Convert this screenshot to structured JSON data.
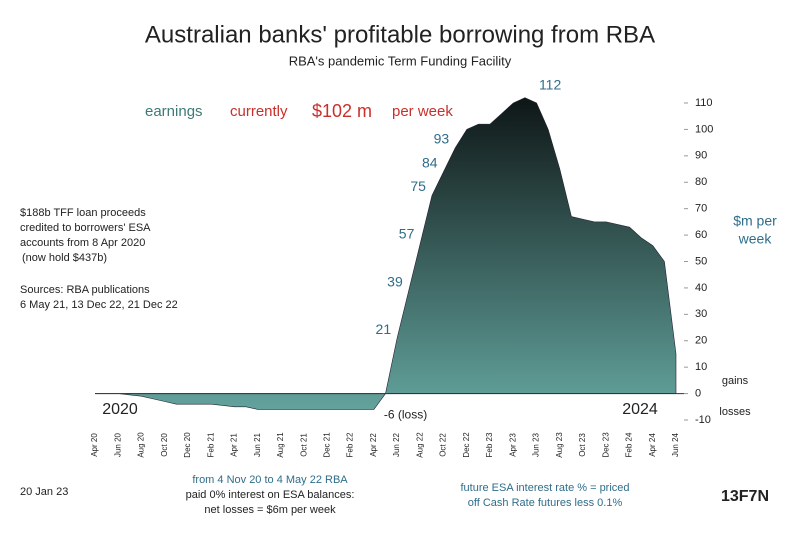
{
  "chart_data": {
    "type": "area",
    "title": "Australian banks' profitable borrowing from RBA",
    "subtitle": "RBA's pandemic Term Funding Facility",
    "headline": [
      "earnings",
      "currently",
      "$102 m",
      "per week"
    ],
    "note_left": [
      "$188b TFF loan proceeds",
      "credited to borrowers' ESA",
      "accounts from 8 Apr 2020",
      "(now hold $437b)"
    ],
    "sources": [
      "Sources:  RBA publications",
      "6 May 21, 13 Dec 22, 21 Dec 22"
    ],
    "year_labels": [
      "2020",
      "2024"
    ],
    "y_axis_label": [
      "$m per",
      "week"
    ],
    "gain_label": "gains",
    "loss_label": "losses",
    "date": "20 Jan 23",
    "note_bottom": [
      "from 4 Nov 20 to 4 May 22  RBA",
      "paid 0% interest on ESA balances:",
      "net losses = $6m per week"
    ],
    "note_future": [
      "future ESA interest rate % = priced",
      "off Cash Rate futures less 0.1%"
    ],
    "logo": "13F7N",
    "categories": [
      "Apr 20",
      null,
      "Jun 20",
      null,
      "Aug 20",
      null,
      "Oct 20",
      null,
      "Dec 20",
      null,
      "Feb 21",
      null,
      "Apr 21",
      null,
      "Jun 21",
      null,
      "Aug 21",
      null,
      "Oct 21",
      null,
      "Dec 21",
      null,
      "Feb 22",
      null,
      "Apr 22",
      null,
      "Jun 22",
      null,
      "Aug 22",
      null,
      "Oct 22",
      null,
      "Dec 22",
      null,
      "Feb 23",
      null,
      "Apr 23",
      null,
      "Jun 23",
      null,
      "Aug 23",
      null,
      "Oct 23",
      null,
      "Dec 23",
      null,
      "Feb 24",
      null,
      "Apr 24",
      null,
      "Jun 24"
    ],
    "values": [
      0,
      0,
      0,
      -0.5,
      -1,
      -2,
      -3,
      -4,
      -4,
      -4,
      -4,
      -4.5,
      -5,
      -5,
      -6,
      -6,
      -6,
      -6,
      -6,
      -6,
      -6,
      -6,
      -6,
      -6,
      -6,
      0,
      21,
      39,
      57,
      75,
      84,
      93,
      100,
      102,
      102,
      106,
      110,
      112,
      110,
      100,
      85,
      67,
      66,
      65,
      65,
      64,
      63,
      59,
      56,
      50,
      15
    ],
    "value_labels": [
      null,
      null,
      null,
      null,
      null,
      null,
      null,
      null,
      null,
      null,
      null,
      null,
      null,
      null,
      null,
      null,
      null,
      null,
      null,
      null,
      null,
      null,
      null,
      null,
      "-6 (loss)",
      null,
      "21",
      "39",
      "57",
      "75",
      "84",
      "93",
      null,
      null,
      null,
      null,
      null,
      "112",
      null,
      null,
      null,
      null,
      null,
      null,
      null,
      null,
      null,
      null,
      null,
      null,
      null
    ],
    "gradient": [
      "#0e1616",
      "#63a39d"
    ],
    "ylim": [
      -10,
      110
    ],
    "yticks": [
      -10,
      0,
      10,
      20,
      30,
      40,
      50,
      60,
      70,
      80,
      90,
      100,
      110
    ]
  }
}
